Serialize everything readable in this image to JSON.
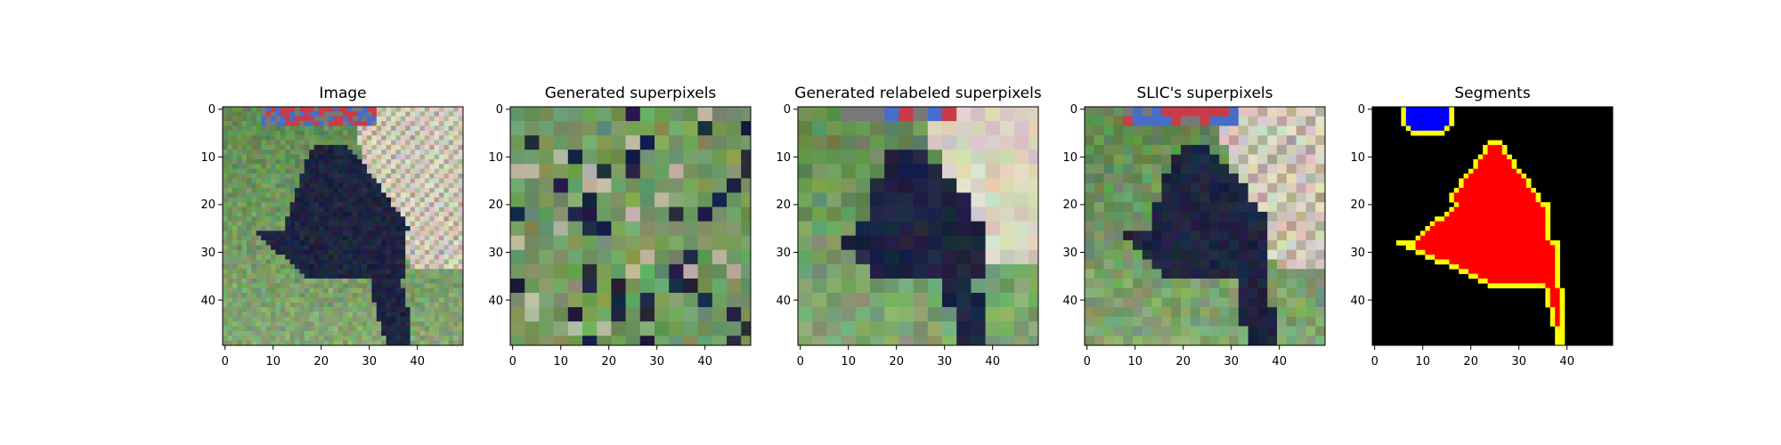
{
  "figure": {
    "panels": [
      {
        "id": "image",
        "title": "Image",
        "xticks": [
          "0",
          "10",
          "20",
          "30",
          "40"
        ],
        "yticks": [
          "0",
          "10",
          "20",
          "30",
          "40"
        ],
        "kind": "photo"
      },
      {
        "id": "generated-superpixels",
        "title": "Generated superpixels",
        "xticks": [
          "0",
          "10",
          "20",
          "30",
          "40"
        ],
        "yticks": [
          "0",
          "10",
          "20",
          "30",
          "40"
        ],
        "kind": "shuffled"
      },
      {
        "id": "generated-relabeled-superpixels",
        "title": "Generated relabeled superpixels",
        "xticks": [
          "0",
          "10",
          "20",
          "30",
          "40"
        ],
        "yticks": [
          "0",
          "10",
          "20",
          "30",
          "40"
        ],
        "kind": "relabeled"
      },
      {
        "id": "slic-superpixels",
        "title": "SLIC's superpixels",
        "xticks": [
          "0",
          "10",
          "20",
          "30",
          "40"
        ],
        "yticks": [
          "0",
          "10",
          "20",
          "30",
          "40"
        ],
        "kind": "slic"
      },
      {
        "id": "segments",
        "title": "Segments",
        "xticks": [
          "0",
          "10",
          "20",
          "30",
          "40"
        ],
        "yticks": [
          "0",
          "10",
          "20",
          "30",
          "40"
        ],
        "kind": "segments"
      }
    ],
    "colors": {
      "grass": "#5f8a4f",
      "grass_light": "#8fae7c",
      "dog": "#1e2440",
      "fence": "#d8d2c0",
      "segment_background": "#000000",
      "segment_object": "#ff0000",
      "segment_small_object": "#0000ff",
      "segment_boundary": "#ffff00",
      "axes": "#000000"
    }
  }
}
